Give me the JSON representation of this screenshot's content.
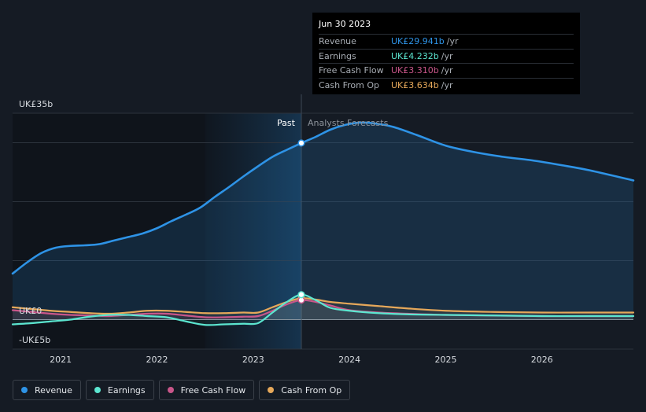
{
  "colors": {
    "revenue": "#2e93e6",
    "earnings": "#5ce6d0",
    "fcf": "#c9568a",
    "cfo": "#e6a85a"
  },
  "tooltip": {
    "date": "Jun 30 2023",
    "rows": [
      {
        "label": "Revenue",
        "value": "UK£29.941b",
        "unit": "/yr",
        "color": "#2e93e6"
      },
      {
        "label": "Earnings",
        "value": "UK£4.232b",
        "unit": "/yr",
        "color": "#5ce6d0"
      },
      {
        "label": "Free Cash Flow",
        "value": "UK£3.310b",
        "unit": "/yr",
        "color": "#c9568a"
      },
      {
        "label": "Cash From Op",
        "value": "UK£3.634b",
        "unit": "/yr",
        "color": "#e6a85a"
      }
    ]
  },
  "legend": [
    {
      "label": "Revenue",
      "color": "#2e93e6"
    },
    {
      "label": "Earnings",
      "color": "#5ce6d0"
    },
    {
      "label": "Free Cash Flow",
      "color": "#c9568a"
    },
    {
      "label": "Cash From Op",
      "color": "#e6a85a"
    }
  ],
  "chart_data": {
    "type": "line",
    "title": "",
    "xlabel": "",
    "ylabel": "",
    "ylim": [
      -5,
      35
    ],
    "xlim": [
      2020.5,
      2026.95
    ],
    "y_tick_labels": [
      {
        "value": 35,
        "label": "UK£35b"
      },
      {
        "value": 0,
        "label": "UK£0"
      },
      {
        "value": -5,
        "label": "-UK£5b"
      }
    ],
    "x_ticks": [
      2021,
      2022,
      2023,
      2024,
      2025,
      2026
    ],
    "x_tick_labels": [
      "2021",
      "2022",
      "2023",
      "2024",
      "2025",
      "2026"
    ],
    "grid_values": [
      35,
      30,
      20,
      10,
      0,
      -5
    ],
    "past_label": "Past",
    "forecast_label": "Analysts Forecasts",
    "past_end": 2023.5,
    "highlight_start": 2022.5,
    "series": [
      {
        "name": "Revenue",
        "key": "revenue",
        "x": [
          2020.5,
          2020.65,
          2020.8,
          2020.95,
          2021.1,
          2021.25,
          2021.4,
          2021.55,
          2021.7,
          2021.85,
          2022.0,
          2022.15,
          2022.3,
          2022.45,
          2022.6,
          2022.75,
          2022.9,
          2023.05,
          2023.2,
          2023.35,
          2023.5,
          2023.65,
          2023.8,
          2023.95,
          2024.1,
          2024.25,
          2024.45,
          2024.7,
          2025.0,
          2025.3,
          2025.6,
          2025.9,
          2026.2,
          2026.5,
          2026.95
        ],
        "values": [
          7.8,
          9.7,
          11.3,
          12.2,
          12.5,
          12.6,
          12.8,
          13.4,
          14.0,
          14.6,
          15.5,
          16.7,
          17.8,
          19.0,
          20.8,
          22.5,
          24.3,
          26.0,
          27.6,
          28.8,
          29.94,
          31.0,
          32.2,
          33.0,
          33.4,
          33.3,
          32.7,
          31.3,
          29.5,
          28.4,
          27.6,
          27.0,
          26.2,
          25.3,
          23.6
        ]
      },
      {
        "name": "Earnings",
        "key": "earnings",
        "x": [
          2020.5,
          2020.7,
          2020.9,
          2021.1,
          2021.3,
          2021.5,
          2021.7,
          2021.9,
          2022.1,
          2022.3,
          2022.5,
          2022.7,
          2022.9,
          2023.05,
          2023.2,
          2023.35,
          2023.5,
          2023.65,
          2023.8,
          2024.0,
          2024.3,
          2024.6,
          2025.0,
          2025.5,
          2026.0,
          2026.5,
          2026.95
        ],
        "values": [
          -0.8,
          -0.6,
          -0.3,
          0.0,
          0.5,
          0.8,
          0.8,
          0.6,
          0.4,
          -0.3,
          -0.9,
          -0.8,
          -0.7,
          -0.6,
          1.2,
          3.0,
          4.23,
          3.3,
          2.0,
          1.5,
          1.1,
          0.9,
          0.8,
          0.7,
          0.6,
          0.6,
          0.6
        ]
      },
      {
        "name": "Free Cash Flow",
        "key": "fcf",
        "x": [
          2020.5,
          2020.7,
          2020.9,
          2021.1,
          2021.3,
          2021.5,
          2021.7,
          2021.9,
          2022.1,
          2022.3,
          2022.5,
          2022.7,
          2022.9,
          2023.05,
          2023.2,
          2023.35,
          2023.5,
          2023.65,
          2023.8,
          2024.0,
          2024.3,
          2024.6,
          2025.0,
          2025.5,
          2026.0,
          2026.5,
          2026.95
        ],
        "values": [
          1.6,
          1.3,
          1.0,
          0.8,
          0.7,
          0.6,
          0.8,
          1.0,
          1.0,
          0.7,
          0.4,
          0.4,
          0.5,
          0.6,
          1.5,
          2.6,
          3.31,
          3.0,
          2.4,
          1.6,
          1.2,
          1.0,
          0.8,
          0.7,
          0.6,
          0.6,
          0.6
        ]
      },
      {
        "name": "Cash From Op",
        "key": "cfo",
        "x": [
          2020.5,
          2020.7,
          2020.9,
          2021.1,
          2021.3,
          2021.5,
          2021.7,
          2021.9,
          2022.1,
          2022.3,
          2022.5,
          2022.7,
          2022.9,
          2023.05,
          2023.2,
          2023.35,
          2023.5,
          2023.65,
          2023.8,
          2024.0,
          2024.3,
          2024.6,
          2025.0,
          2025.5,
          2026.0,
          2026.5,
          2026.95
        ],
        "values": [
          2.1,
          1.8,
          1.5,
          1.3,
          1.1,
          1.0,
          1.2,
          1.5,
          1.5,
          1.3,
          1.1,
          1.1,
          1.2,
          1.2,
          2.1,
          3.0,
          3.63,
          3.4,
          3.0,
          2.7,
          2.3,
          1.9,
          1.5,
          1.3,
          1.2,
          1.2,
          1.2
        ]
      }
    ]
  }
}
